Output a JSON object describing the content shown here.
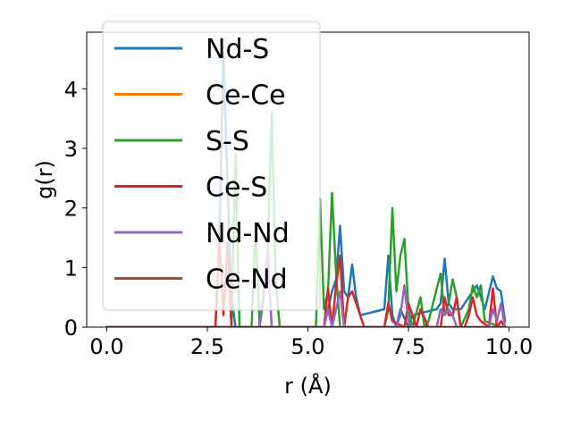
{
  "chart_data": {
    "type": "line",
    "xlabel": "r (Å)",
    "ylabel": "g(r)",
    "xlim": [
      -0.5,
      10.5
    ],
    "ylim": [
      0,
      4.95
    ],
    "xticks": [
      0.0,
      2.5,
      5.0,
      7.5,
      10.0
    ],
    "xtick_labels": [
      "0.0",
      "2.5",
      "5.0",
      "7.5",
      "10.0"
    ],
    "yticks": [
      0,
      1,
      2,
      3,
      4
    ],
    "ytick_labels": [
      "0",
      "1",
      "2",
      "3",
      "4"
    ],
    "grid": false,
    "legend_position": "top-left",
    "series": [
      {
        "name": "Nd-S",
        "color": "#1f77b4",
        "x": [
          0.0,
          2.7,
          2.8,
          2.9,
          3.0,
          3.1,
          3.2,
          5.4,
          5.5,
          5.6,
          5.7,
          5.8,
          5.9,
          6.0,
          6.1,
          6.2,
          6.3,
          6.9,
          7.0,
          7.1,
          7.2,
          7.3,
          7.5,
          7.6,
          8.2,
          8.3,
          8.4,
          8.5,
          8.6,
          8.8,
          9.0,
          9.2,
          9.4,
          9.6,
          9.7,
          9.8,
          9.9
        ],
        "y": [
          0.0,
          0.0,
          1.5,
          4.6,
          2.4,
          0.5,
          0.0,
          0.0,
          0.3,
          0.6,
          0.8,
          1.7,
          0.6,
          0.5,
          1.05,
          0.5,
          0.2,
          0.3,
          1.2,
          0.2,
          0.0,
          0.3,
          0.0,
          0.2,
          0.3,
          0.4,
          1.15,
          0.4,
          0.3,
          0.3,
          0.5,
          0.7,
          0.3,
          0.85,
          0.65,
          0.6,
          0.1
        ]
      },
      {
        "name": "Ce-Ce",
        "color": "#ff7f0e",
        "x": [
          0.0,
          9.9
        ],
        "y": [
          0.0,
          0.0
        ]
      },
      {
        "name": "S-S",
        "color": "#2ca02c",
        "x": [
          0.0,
          3.1,
          3.2,
          3.3,
          3.6,
          3.7,
          3.8,
          4.0,
          4.1,
          4.2,
          4.3,
          5.2,
          5.3,
          5.4,
          5.5,
          5.6,
          5.7,
          5.8,
          6.9,
          7.0,
          7.1,
          7.2,
          7.3,
          7.4,
          7.5,
          7.6,
          7.8,
          7.9,
          8.0,
          8.3,
          8.4,
          8.5,
          8.6,
          8.7,
          8.8,
          9.0,
          9.1,
          9.2,
          9.3,
          9.4,
          9.8
        ],
        "y": [
          0.0,
          0.0,
          2.9,
          0.0,
          0.0,
          1.7,
          0.0,
          1.2,
          3.6,
          0.8,
          0.0,
          0.0,
          2.15,
          0.3,
          0.6,
          2.25,
          0.9,
          0.0,
          0.0,
          0.3,
          2.0,
          0.6,
          1.2,
          1.48,
          0.3,
          0.0,
          0.5,
          0.0,
          0.1,
          0.9,
          0.2,
          0.4,
          0.8,
          0.5,
          0.0,
          0.3,
          0.7,
          0.5,
          0.7,
          0.1,
          0.0
        ]
      },
      {
        "name": "Ce-S",
        "color": "#d62728",
        "x": [
          0.0,
          2.7,
          2.8,
          2.9,
          3.0,
          3.1,
          5.4,
          5.5,
          5.6,
          5.7,
          5.8,
          5.9,
          6.0,
          6.1,
          6.4,
          6.9,
          7.0,
          7.1,
          7.4,
          7.5,
          7.7,
          7.8,
          8.0,
          8.3,
          8.4,
          8.5,
          8.6,
          8.7,
          8.8,
          8.9,
          9.0,
          9.1,
          9.2,
          9.3,
          9.5,
          9.6,
          9.7,
          9.8,
          9.9
        ],
        "y": [
          0.0,
          0.0,
          1.5,
          0.2,
          1.4,
          0.0,
          0.0,
          0.65,
          0.0,
          0.7,
          1.2,
          0.0,
          0.5,
          0.6,
          0.0,
          0.0,
          0.4,
          0.1,
          0.0,
          0.4,
          0.0,
          0.3,
          0.0,
          0.0,
          0.5,
          0.2,
          0.2,
          0.5,
          0.0,
          0.0,
          0.2,
          0.5,
          0.2,
          0.1,
          0.0,
          0.65,
          0.0,
          0.1,
          0.0
        ]
      },
      {
        "name": "Nd-Nd",
        "color": "#9467bd",
        "x": [
          0.0,
          3.8,
          3.9,
          4.0,
          4.1,
          5.4,
          5.5,
          5.6,
          5.7,
          5.8,
          5.9,
          7.2,
          7.3,
          7.4,
          7.5,
          7.6,
          8.2,
          8.3,
          8.4,
          8.5,
          8.6,
          8.7,
          9.5,
          9.6,
          9.7,
          9.8,
          9.9
        ],
        "y": [
          0.0,
          0.0,
          0.5,
          1.3,
          0.0,
          0.0,
          0.3,
          0.0,
          0.3,
          0.6,
          0.0,
          0.0,
          0.2,
          0.7,
          0.1,
          0.0,
          0.0,
          0.3,
          0.2,
          0.3,
          0.2,
          0.0,
          0.0,
          0.3,
          0.1,
          0.4,
          0.0
        ]
      },
      {
        "name": "Ce-Nd",
        "color": "#8c564b",
        "x": [
          0.0,
          9.9
        ],
        "y": [
          0.0,
          0.0
        ]
      }
    ]
  }
}
